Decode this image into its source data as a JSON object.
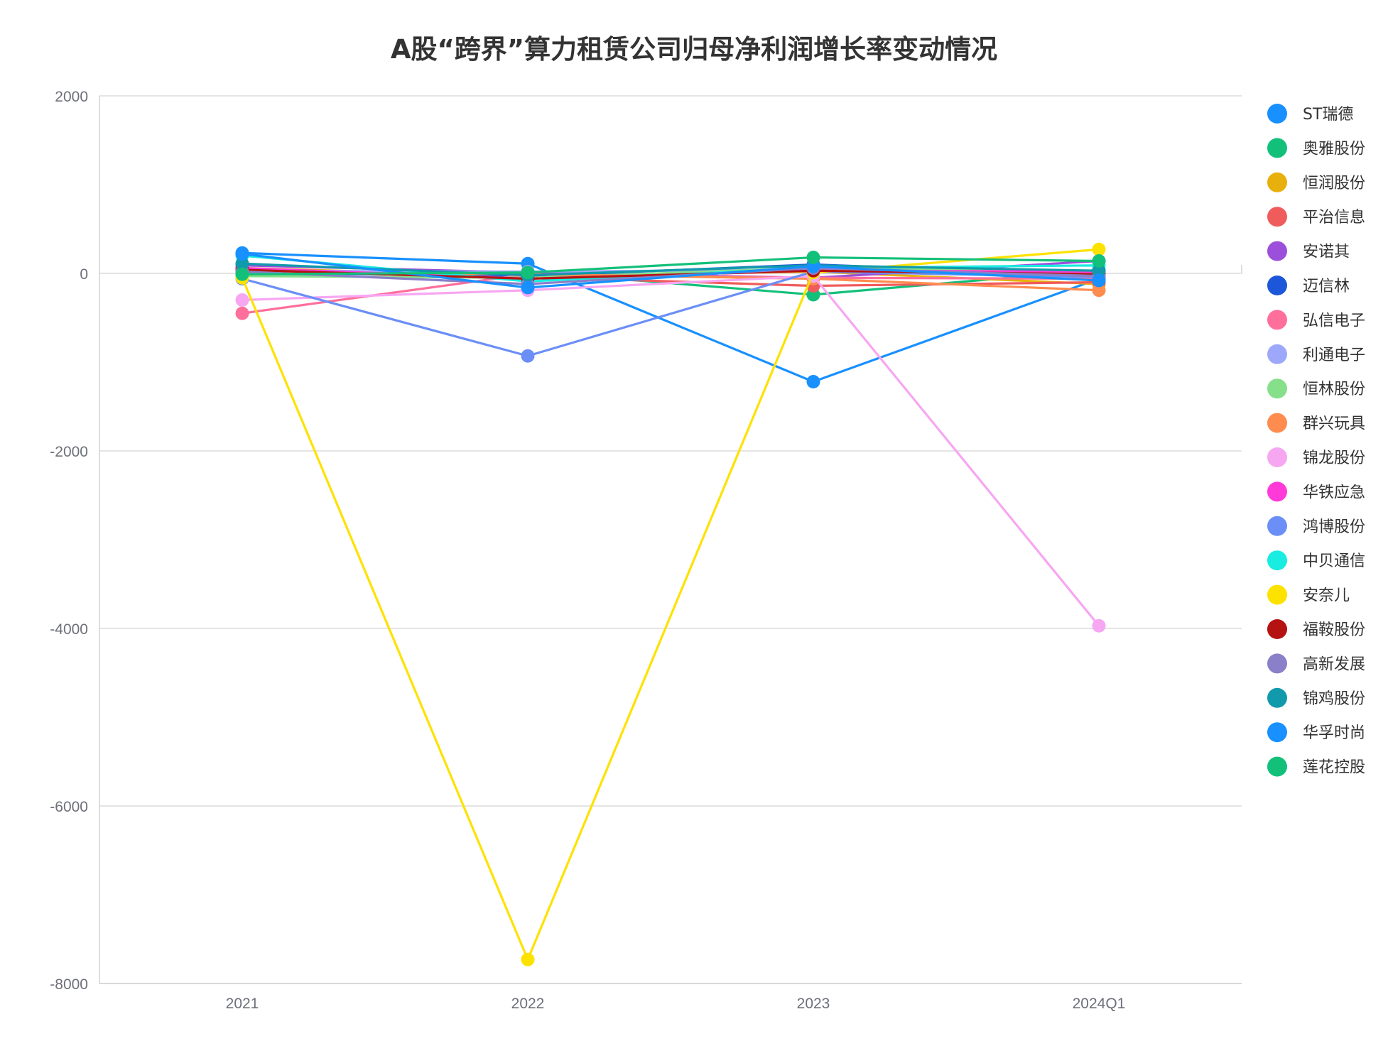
{
  "chart_data": {
    "type": "line",
    "title": "A股“跨界”算力租赁公司归母净利润增长率变动情况",
    "xlabel": "",
    "ylabel": "",
    "categories": [
      "2021",
      "2022",
      "2023",
      "2024Q1"
    ],
    "ylim": [
      -8000,
      2000
    ],
    "yticks": [
      2000,
      0,
      -2000,
      -4000,
      -6000,
      -8000
    ],
    "grid": true,
    "legend_position": "right",
    "series": [
      {
        "name": "ST瑞德",
        "color": "#1890ff",
        "values": [
          230,
          110,
          -1220,
          -60
        ]
      },
      {
        "name": "奥雅股份",
        "color": "#13c07a",
        "values": [
          -20,
          20,
          -240,
          40
        ]
      },
      {
        "name": "恒润股份",
        "color": "#e8b00c",
        "values": [
          60,
          -30,
          20,
          -120
        ]
      },
      {
        "name": "平治信息",
        "color": "#f05b5b",
        "values": [
          20,
          -40,
          -140,
          -100
        ]
      },
      {
        "name": "安诺其",
        "color": "#9b4fdb",
        "values": [
          90,
          10,
          -50,
          140
        ]
      },
      {
        "name": "迈信林",
        "color": "#1d57d9",
        "values": [
          10,
          -30,
          100,
          -20
        ]
      },
      {
        "name": "弘信电子",
        "color": "#ff6f9c",
        "values": [
          -450,
          -10,
          -50,
          -60
        ]
      },
      {
        "name": "利通电子",
        "color": "#9ea8fa",
        "values": [
          30,
          20,
          40,
          10
        ]
      },
      {
        "name": "恒林股份",
        "color": "#86e08a",
        "values": [
          -30,
          -50,
          60,
          30
        ]
      },
      {
        "name": "群兴玩具",
        "color": "#ff8c4f",
        "values": [
          10,
          -10,
          -60,
          -190
        ]
      },
      {
        "name": "锦龙股份",
        "color": "#f7a6f2",
        "values": [
          -300,
          -190,
          -30,
          -3970
        ]
      },
      {
        "name": "华铁应急",
        "color": "#ff3ad8",
        "values": [
          60,
          -60,
          30,
          20
        ]
      },
      {
        "name": "鸿博股份",
        "color": "#6b8ef7",
        "values": [
          -60,
          -930,
          20,
          -40
        ]
      },
      {
        "name": "中贝通信",
        "color": "#19ece0",
        "values": [
          200,
          -90,
          60,
          90
        ]
      },
      {
        "name": "安奈儿",
        "color": "#fde200",
        "values": [
          -50,
          -7730,
          10,
          270
        ]
      },
      {
        "name": "福鞍股份",
        "color": "#b51212",
        "values": [
          40,
          -60,
          30,
          -10
        ]
      },
      {
        "name": "高新发展",
        "color": "#8a7fc9",
        "values": [
          20,
          -120,
          60,
          -30
        ]
      },
      {
        "name": "锦鸡股份",
        "color": "#109aab",
        "values": [
          110,
          -20,
          90,
          30
        ]
      },
      {
        "name": "华孚时尚",
        "color": "#1890ff",
        "values": [
          220,
          -160,
          80,
          -80
        ]
      },
      {
        "name": "莲花控股",
        "color": "#13c07a",
        "values": [
          -10,
          10,
          180,
          140
        ]
      }
    ]
  }
}
